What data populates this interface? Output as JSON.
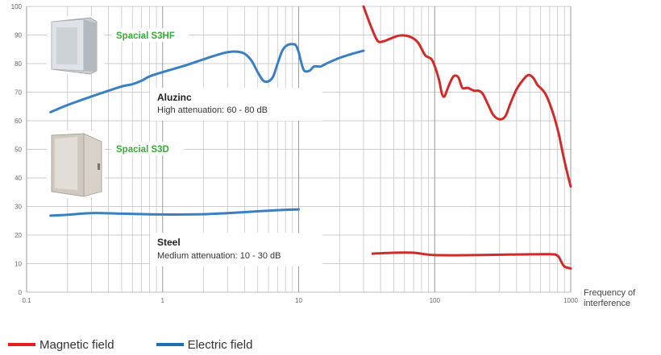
{
  "chart_data": {
    "type": "line",
    "x_scale": "log",
    "xlim": [
      0.1,
      1000
    ],
    "ylim": [
      0,
      100
    ],
    "x_ticks": [
      "0.1",
      "1",
      "10",
      "100",
      "1000"
    ],
    "y_ticks": [
      "0",
      "10",
      "20",
      "30",
      "40",
      "50",
      "60",
      "70",
      "80",
      "90",
      "100"
    ],
    "xlabel_lines": [
      "Frequency of",
      "interference"
    ],
    "grid": true,
    "legend_position": "bottom-left",
    "legend": [
      {
        "name": "Magnetic field",
        "color": "#e02020"
      },
      {
        "name": "Electric field",
        "color": "#1f6fb5"
      }
    ],
    "series": [
      {
        "name": "Electric field",
        "enclosure": "Spacial S3HF",
        "color": "#3a7fc1",
        "points": [
          [
            0.15,
            63
          ],
          [
            0.2,
            65.5
          ],
          [
            0.3,
            68.5
          ],
          [
            0.4,
            70.5
          ],
          [
            0.5,
            72
          ],
          [
            0.6,
            72.8
          ],
          [
            0.7,
            74
          ],
          [
            0.8,
            75.5
          ],
          [
            1.0,
            77
          ],
          [
            1.5,
            79.5
          ],
          [
            2,
            81.5
          ],
          [
            2.5,
            83
          ],
          [
            3,
            84
          ],
          [
            3.5,
            84.2
          ],
          [
            4,
            83.5
          ],
          [
            4.5,
            81
          ],
          [
            5,
            77
          ],
          [
            5.5,
            74
          ],
          [
            6,
            73.8
          ],
          [
            6.5,
            75.5
          ],
          [
            7,
            80
          ],
          [
            7.5,
            84
          ],
          [
            8,
            86
          ],
          [
            8.7,
            86.8
          ],
          [
            9.5,
            86.5
          ],
          [
            10,
            84
          ],
          [
            10.5,
            80
          ],
          [
            11,
            77.5
          ],
          [
            12,
            77.5
          ],
          [
            13,
            79
          ],
          [
            14.5,
            79
          ],
          [
            16,
            80
          ],
          [
            20,
            82
          ],
          [
            25,
            83.5
          ],
          [
            30,
            84.5
          ]
        ]
      },
      {
        "name": "Electric field",
        "enclosure": "Spacial S3D",
        "color": "#3a7fc1",
        "points": [
          [
            0.15,
            26.8
          ],
          [
            0.2,
            27.1
          ],
          [
            0.3,
            27.7
          ],
          [
            0.5,
            27.5
          ],
          [
            1,
            27.2
          ],
          [
            2,
            27.3
          ],
          [
            3,
            27.7
          ],
          [
            5,
            28.3
          ],
          [
            7,
            28.7
          ],
          [
            10,
            29
          ]
        ]
      },
      {
        "name": "Magnetic field",
        "enclosure": "Spacial S3HF",
        "color": "#d02b2b",
        "points": [
          [
            30,
            100
          ],
          [
            34,
            93
          ],
          [
            38,
            88
          ],
          [
            42,
            87.8
          ],
          [
            46,
            88.5
          ],
          [
            55,
            89.8
          ],
          [
            65,
            89.5
          ],
          [
            75,
            87.5
          ],
          [
            85,
            83
          ],
          [
            95,
            81.5
          ],
          [
            102,
            78
          ],
          [
            108,
            74
          ],
          [
            113,
            69.5
          ],
          [
            118,
            68.5
          ],
          [
            125,
            71.5
          ],
          [
            135,
            75
          ],
          [
            142,
            75.8
          ],
          [
            150,
            75
          ],
          [
            160,
            71.5
          ],
          [
            175,
            71.5
          ],
          [
            195,
            70.5
          ],
          [
            210,
            70.5
          ],
          [
            225,
            69.5
          ],
          [
            245,
            66
          ],
          [
            270,
            62
          ],
          [
            300,
            60.5
          ],
          [
            330,
            61.5
          ],
          [
            360,
            66
          ],
          [
            400,
            71
          ],
          [
            450,
            74.5
          ],
          [
            490,
            76
          ],
          [
            530,
            75
          ],
          [
            570,
            72.5
          ],
          [
            600,
            71.5
          ],
          [
            650,
            69.5
          ],
          [
            700,
            66
          ],
          [
            760,
            61
          ],
          [
            820,
            55
          ],
          [
            880,
            48
          ],
          [
            940,
            42
          ],
          [
            1000,
            37
          ]
        ]
      },
      {
        "name": "Magnetic field",
        "enclosure": "Spacial S3D",
        "color": "#d02b2b",
        "points": [
          [
            35,
            13.5
          ],
          [
            50,
            13.8
          ],
          [
            70,
            13.8
          ],
          [
            100,
            13
          ],
          [
            200,
            13
          ],
          [
            400,
            13.2
          ],
          [
            700,
            13.3
          ],
          [
            800,
            12.8
          ],
          [
            850,
            10.8
          ],
          [
            900,
            9
          ],
          [
            1000,
            8.3
          ]
        ]
      }
    ],
    "annotations": [
      {
        "title": "Aluzinc",
        "text": "High attenuation: 60 - 80 dB"
      },
      {
        "title": "Steel",
        "text": "Medium attenuation: 10 - 30 dB"
      }
    ],
    "product_labels": [
      {
        "name": "Spacial S3HF",
        "color": "#3aa83a"
      },
      {
        "name": "Spacial S3D",
        "color": "#3aa83a"
      }
    ]
  }
}
